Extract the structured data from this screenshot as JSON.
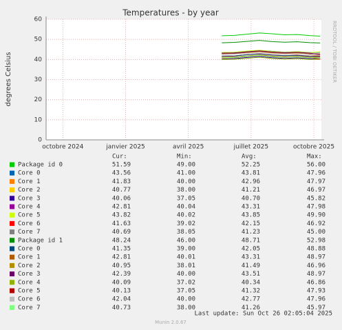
{
  "chart_data": {
    "type": "line",
    "title": "Temperatures - by year",
    "y_label": "degrees Celsius",
    "side_label": "RRDTOOL / TOBI OETIKER",
    "x": [
      7.6,
      8.2,
      8.8,
      9.4,
      10.0,
      10.6,
      11.2,
      11.8,
      12.3
    ],
    "xlim": [
      -0.8,
      12.36
    ],
    "xticks": [
      {
        "value": 0,
        "label": "octobre 2024"
      },
      {
        "value": 3,
        "label": "janvier 2025"
      },
      {
        "value": 6,
        "label": "avril 2025"
      },
      {
        "value": 9,
        "label": "juillet 2025"
      },
      {
        "value": 12,
        "label": "octobre 2025"
      }
    ],
    "ylim": [
      0,
      60
    ],
    "yticks": [
      0,
      10,
      20,
      30,
      40,
      50,
      60
    ],
    "grid": true,
    "legend_headers": [
      "Cur:",
      "Min:",
      "Avg:",
      "Max:"
    ],
    "series": [
      {
        "name": "Package id 0",
        "color": "#00cc00",
        "values": [
          51.8,
          52.0,
          52.6,
          53.2,
          52.8,
          52.3,
          52.4,
          51.9,
          51.6
        ],
        "stats": [
          "51.59",
          "49.00",
          "52.25",
          "56.00"
        ]
      },
      {
        "name": "Core 0",
        "color": "#0066b3",
        "values": [
          43.2,
          43.6,
          44.0,
          44.5,
          44.1,
          43.6,
          43.9,
          43.4,
          43.6
        ],
        "stats": [
          "43.56",
          "41.00",
          "43.81",
          "47.96"
        ]
      },
      {
        "name": "Core 1",
        "color": "#ff8000",
        "values": [
          42.5,
          42.8,
          43.4,
          43.8,
          43.2,
          42.7,
          43.1,
          42.4,
          41.8
        ],
        "stats": [
          "41.83",
          "40.00",
          "42.96",
          "47.97"
        ]
      },
      {
        "name": "Core 2",
        "color": "#ffcc00",
        "values": [
          40.6,
          40.9,
          41.5,
          42.0,
          41.4,
          41.0,
          41.3,
          40.8,
          40.8
        ],
        "stats": [
          "40.77",
          "38.00",
          "41.21",
          "46.97"
        ]
      },
      {
        "name": "Core 3",
        "color": "#330099",
        "values": [
          40.2,
          40.4,
          41.0,
          41.5,
          40.9,
          40.5,
          40.8,
          40.4,
          40.1
        ],
        "stats": [
          "40.06",
          "37.05",
          "40.70",
          "45.82"
        ]
      },
      {
        "name": "Core 4",
        "color": "#990099",
        "values": [
          42.9,
          43.0,
          43.6,
          44.1,
          43.5,
          43.1,
          43.4,
          42.9,
          42.8
        ],
        "stats": [
          "42.81",
          "40.04",
          "43.31",
          "47.98"
        ]
      },
      {
        "name": "Core 5",
        "color": "#ccff00",
        "values": [
          43.5,
          43.6,
          44.2,
          44.6,
          44.0,
          43.6,
          43.9,
          43.4,
          43.8
        ],
        "stats": [
          "43.82",
          "40.02",
          "43.85",
          "49.90"
        ]
      },
      {
        "name": "Core 6",
        "color": "#ff0000",
        "values": [
          41.6,
          41.8,
          42.4,
          42.9,
          42.3,
          41.9,
          42.2,
          41.7,
          41.6
        ],
        "stats": [
          "41.63",
          "39.02",
          "42.15",
          "46.92"
        ]
      },
      {
        "name": "Core 7",
        "color": "#808080",
        "values": [
          40.8,
          40.9,
          41.5,
          42.0,
          41.3,
          41.0,
          41.3,
          40.9,
          40.7
        ],
        "stats": [
          "40.69",
          "38.05",
          "41.23",
          "45.00"
        ]
      },
      {
        "name": "Package id 1",
        "color": "#008f00",
        "values": [
          48.3,
          48.5,
          49.0,
          49.5,
          48.9,
          48.6,
          48.8,
          48.4,
          48.2
        ],
        "stats": [
          "48.24",
          "46.00",
          "48.71",
          "52.98"
        ]
      },
      {
        "name": "Core 0",
        "color": "#00487d",
        "values": [
          41.7,
          41.8,
          42.4,
          42.8,
          42.2,
          41.9,
          42.1,
          41.6,
          41.4
        ],
        "stats": [
          "41.35",
          "39.00",
          "42.05",
          "48.88"
        ]
      },
      {
        "name": "Core 1",
        "color": "#b35a00",
        "values": [
          42.9,
          43.1,
          43.6,
          44.1,
          43.5,
          43.2,
          43.4,
          43.0,
          42.8
        ],
        "stats": [
          "42.81",
          "40.01",
          "43.31",
          "48.97"
        ]
      },
      {
        "name": "Core 2",
        "color": "#b38f00",
        "values": [
          41.1,
          41.3,
          41.8,
          42.3,
          41.7,
          41.4,
          41.6,
          41.2,
          41.0
        ],
        "stats": [
          "40.95",
          "38.01",
          "41.49",
          "46.96"
        ]
      },
      {
        "name": "Core 3",
        "color": "#6b006b",
        "values": [
          43.2,
          43.3,
          43.8,
          44.3,
          43.7,
          43.4,
          43.6,
          43.2,
          42.4
        ],
        "stats": [
          "42.39",
          "40.00",
          "43.51",
          "48.97"
        ]
      },
      {
        "name": "Core 4",
        "color": "#8fb300",
        "values": [
          40.0,
          40.1,
          40.6,
          41.1,
          40.5,
          40.2,
          40.4,
          40.0,
          40.1
        ],
        "stats": [
          "40.09",
          "37.02",
          "40.34",
          "46.86"
        ]
      },
      {
        "name": "Core 5",
        "color": "#b30000",
        "values": [
          41.0,
          41.1,
          41.6,
          42.1,
          41.5,
          41.2,
          41.4,
          41.0,
          40.1
        ],
        "stats": [
          "40.13",
          "37.05",
          "41.32",
          "47.93"
        ]
      },
      {
        "name": "Core 6",
        "color": "#bebebe",
        "values": [
          42.5,
          42.7,
          43.1,
          43.6,
          43.0,
          42.7,
          42.9,
          42.5,
          42.0
        ],
        "stats": [
          "42.04",
          "40.00",
          "42.77",
          "47.96"
        ]
      },
      {
        "name": "Core 7",
        "color": "#80ff80",
        "values": [
          40.9,
          41.0,
          41.6,
          42.0,
          41.4,
          41.1,
          41.3,
          40.9,
          40.7
        ],
        "stats": [
          "40.73",
          "38.00",
          "41.26",
          "45.97"
        ]
      }
    ],
    "last_update": "Last update: Sun Oct 26 02:05:04 2025",
    "footer": "Munin 2.0.67"
  }
}
